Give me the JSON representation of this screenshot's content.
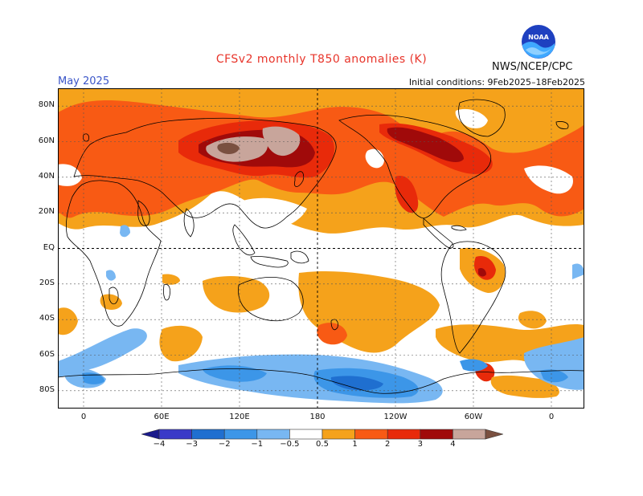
{
  "title": "CFSv2 monthly T850 anomalies (K)",
  "month": "May 2025",
  "initial_conditions": "Initial conditions: 9Feb2025–18Feb2025",
  "agency": "NWS/NCEP/CPC",
  "logo": {
    "icon": "noaa-logo-icon",
    "text": "NOAA"
  },
  "lat_labels": [
    "80N",
    "60N",
    "40N",
    "20N",
    "EQ",
    "20S",
    "40S",
    "60S",
    "80S"
  ],
  "lat_values": [
    80,
    60,
    40,
    20,
    0,
    -20,
    -40,
    -60,
    -80
  ],
  "lon_labels": [
    "0",
    "60E",
    "120E",
    "180",
    "120W",
    "60W",
    "0"
  ],
  "lon_values": [
    0,
    60,
    120,
    180,
    240,
    300,
    360
  ],
  "colorbar": {
    "labels": [
      "−4",
      "−3",
      "−2",
      "−1",
      "−0.5",
      "0.5",
      "1",
      "2",
      "3",
      "4"
    ],
    "colors": [
      "#1a1a8c",
      "#3a3ac8",
      "#1f6fd0",
      "#3c96e8",
      "#78b7f2",
      "#ffffff",
      "#f5a21b",
      "#f85a14",
      "#e82a0a",
      "#a00a0a",
      "#c8a59b",
      "#7a5040"
    ]
  },
  "colors": {
    "title": "#e8342a",
    "month": "#3a55c8",
    "coast": "#000000",
    "grid": "#555555"
  }
}
